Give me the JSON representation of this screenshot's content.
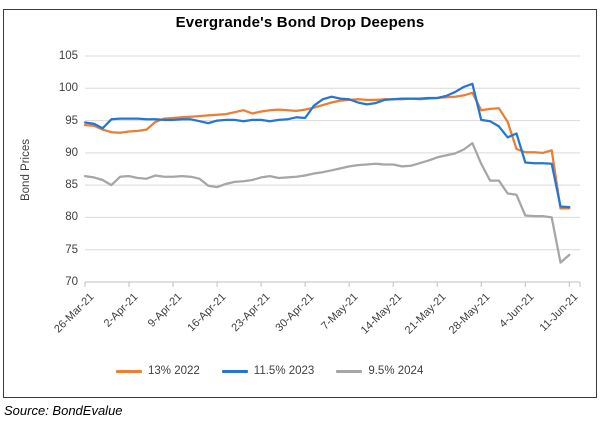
{
  "page": {
    "source_note": "Source: BondEvalue"
  },
  "chart_data": {
    "type": "line",
    "title": "Evergrande's Bond Drop Deepens",
    "xlabel": "",
    "ylabel": "Bond Prices",
    "ylim": [
      70,
      105
    ],
    "yticks": [
      105,
      100,
      95,
      90,
      85,
      80,
      75,
      70
    ],
    "grid": true,
    "legend_position": "bottom",
    "xtick_labels": [
      "26-Mar-21",
      "2-Apr-21",
      "9-Apr-21",
      "16-Apr-21",
      "23-Apr-21",
      "30-Apr-21",
      "7-May-21",
      "14-May-21",
      "21-May-21",
      "28-May-21",
      "4-Jun-21",
      "11-Jun-21"
    ],
    "x": [
      "26-Mar-21",
      "29-Mar-21",
      "30-Mar-21",
      "31-Mar-21",
      "1-Apr-21",
      "2-Apr-21",
      "5-Apr-21",
      "6-Apr-21",
      "7-Apr-21",
      "8-Apr-21",
      "9-Apr-21",
      "12-Apr-21",
      "13-Apr-21",
      "14-Apr-21",
      "15-Apr-21",
      "16-Apr-21",
      "19-Apr-21",
      "20-Apr-21",
      "21-Apr-21",
      "22-Apr-21",
      "23-Apr-21",
      "26-Apr-21",
      "27-Apr-21",
      "28-Apr-21",
      "29-Apr-21",
      "30-Apr-21",
      "3-May-21",
      "4-May-21",
      "5-May-21",
      "6-May-21",
      "7-May-21",
      "10-May-21",
      "11-May-21",
      "12-May-21",
      "13-May-21",
      "14-May-21",
      "17-May-21",
      "18-May-21",
      "19-May-21",
      "20-May-21",
      "21-May-21",
      "24-May-21",
      "25-May-21",
      "26-May-21",
      "27-May-21",
      "28-May-21",
      "31-May-21",
      "1-Jun-21",
      "2-Jun-21",
      "3-Jun-21",
      "4-Jun-21",
      "7-Jun-21",
      "8-Jun-21",
      "9-Jun-21",
      "10-Jun-21",
      "11-Jun-21"
    ],
    "series": [
      {
        "name": "13% 2022",
        "color": "#ED7D31",
        "values": [
          94.3,
          94.2,
          93.6,
          93.2,
          93.1,
          93.3,
          93.4,
          93.6,
          94.8,
          95.3,
          95.4,
          95.5,
          95.6,
          95.7,
          95.8,
          95.9,
          96.0,
          96.3,
          96.6,
          96.1,
          96.4,
          96.6,
          96.7,
          96.6,
          96.5,
          96.7,
          97.0,
          97.4,
          97.8,
          98.1,
          98.2,
          98.3,
          98.2,
          98.2,
          98.3,
          98.3,
          98.3,
          98.4,
          98.3,
          98.4,
          98.5,
          98.6,
          98.7,
          98.9,
          99.3,
          96.6,
          96.8,
          96.9,
          94.8,
          90.6,
          90.1,
          90.1,
          90.0,
          90.4,
          81.4,
          81.4
        ]
      },
      {
        "name": "11.5% 2023",
        "color": "#2377D4",
        "values": [
          94.7,
          94.5,
          93.8,
          95.2,
          95.3,
          95.3,
          95.3,
          95.2,
          95.2,
          95.1,
          95.1,
          95.2,
          95.2,
          94.9,
          94.6,
          95.0,
          95.1,
          95.1,
          94.9,
          95.1,
          95.1,
          94.9,
          95.1,
          95.2,
          95.5,
          95.4,
          97.3,
          98.3,
          98.7,
          98.4,
          98.3,
          97.8,
          97.5,
          97.7,
          98.2,
          98.3,
          98.4,
          98.4,
          98.4,
          98.5,
          98.5,
          98.8,
          99.4,
          100.2,
          100.7,
          95.1,
          94.9,
          94.1,
          92.4,
          93.0,
          88.5,
          88.4,
          88.4,
          88.3,
          81.7,
          81.6
        ]
      },
      {
        "name": "9.5% 2024",
        "color": "#A6A6A6",
        "values": [
          86.4,
          86.2,
          85.8,
          85.0,
          86.3,
          86.4,
          86.1,
          86.0,
          86.5,
          86.3,
          86.3,
          86.4,
          86.3,
          86.0,
          84.9,
          84.7,
          85.2,
          85.5,
          85.6,
          85.8,
          86.2,
          86.4,
          86.1,
          86.2,
          86.3,
          86.5,
          86.8,
          87.0,
          87.3,
          87.6,
          87.9,
          88.1,
          88.2,
          88.3,
          88.2,
          88.2,
          87.9,
          88.0,
          88.4,
          88.8,
          89.3,
          89.6,
          89.9,
          90.5,
          91.5,
          88.3,
          85.7,
          85.7,
          83.7,
          83.5,
          80.3,
          80.2,
          80.2,
          80.0,
          73.0,
          74.2
        ]
      }
    ]
  }
}
